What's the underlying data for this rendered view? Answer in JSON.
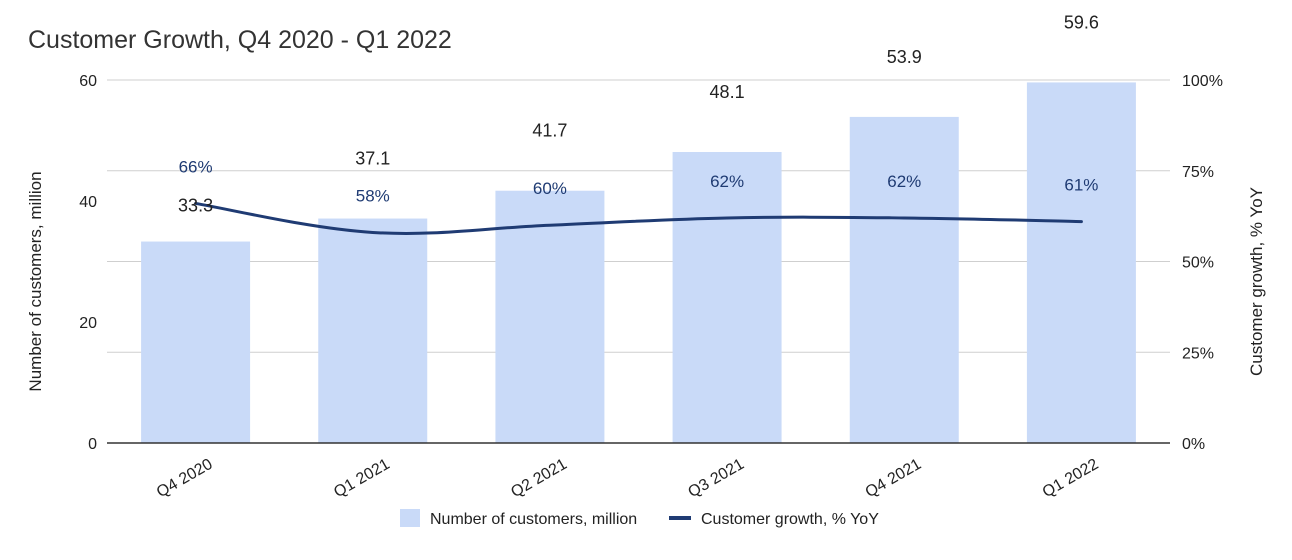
{
  "chart_data": {
    "type": "bar",
    "title": "Customer Growth, Q4 2020 - Q1 2022",
    "categories": [
      "Q4 2020",
      "Q1 2021",
      "Q2 2021",
      "Q3 2021",
      "Q4 2021",
      "Q1 2022"
    ],
    "series": [
      {
        "name": "Number of customers, million",
        "type": "bar",
        "axis": "left",
        "values": [
          33.3,
          37.1,
          41.7,
          48.1,
          53.9,
          59.6
        ],
        "labels": [
          "33.3",
          "37.1",
          "41.7",
          "48.1",
          "53.9",
          "59.6"
        ],
        "color": "#c9daf8"
      },
      {
        "name": "Customer growth, % YoY",
        "type": "line",
        "axis": "right",
        "values": [
          66,
          58,
          60,
          62,
          62,
          61
        ],
        "labels": [
          "66%",
          "58%",
          "60%",
          "62%",
          "62%",
          "61%"
        ],
        "color": "#1f3b73"
      }
    ],
    "ylabel": "Number of customers, million",
    "ylim": [
      0,
      60
    ],
    "yticks": [
      "0",
      "20",
      "40",
      "60"
    ],
    "y2label": "Customer growth, % YoY",
    "y2lim": [
      0,
      100
    ],
    "y2ticks": [
      "0%",
      "25%",
      "50%",
      "75%",
      "100%"
    ],
    "grid": true,
    "legend_position": "bottom"
  }
}
